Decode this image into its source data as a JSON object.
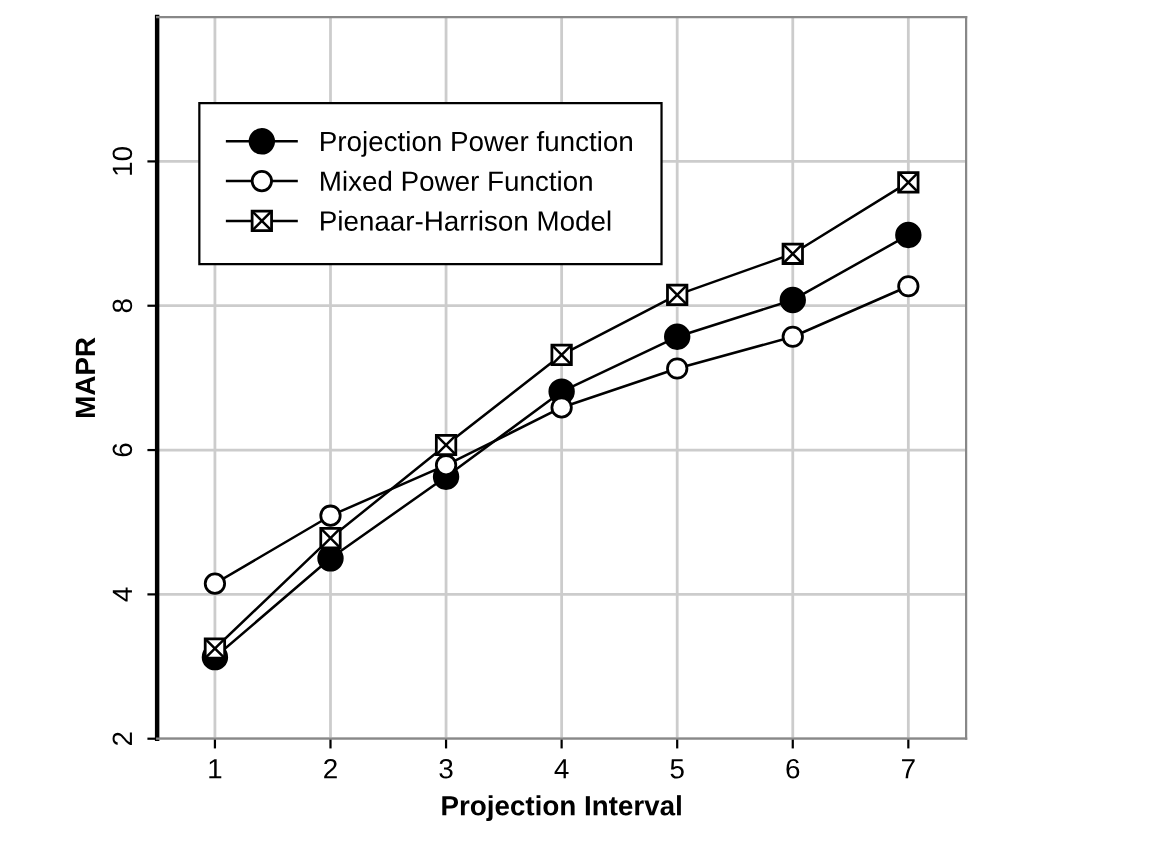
{
  "chart_data": {
    "type": "line",
    "xlabel": "Projection Interval",
    "ylabel": "MAPR",
    "x": [
      1,
      2,
      3,
      4,
      5,
      6,
      7
    ],
    "series": [
      {
        "name": "Projection Power function",
        "color": "#000000",
        "marker": "circle",
        "values": [
          3.13,
          4.5,
          5.63,
          6.81,
          7.57,
          8.08,
          8.98
        ]
      },
      {
        "name": "Mixed Power Function",
        "color": "#000000",
        "marker": "circle",
        "values": [
          4.15,
          5.09,
          5.79,
          6.59,
          7.13,
          7.57,
          8.27
        ]
      },
      {
        "name": "Pienaar-Harrison Model",
        "color": "#000000",
        "marker": "square",
        "values": [
          3.25,
          4.78,
          6.07,
          7.32,
          8.15,
          8.72,
          9.71
        ]
      }
    ],
    "xlim": [
      0.5,
      7.5
    ],
    "ylim": [
      2,
      12
    ],
    "xticks": [
      1,
      2,
      3,
      4,
      5,
      6,
      7
    ],
    "yticks": [
      2,
      4,
      6,
      8,
      10
    ],
    "grid": true,
    "legend": "top left",
    "line_style": "solid"
  }
}
